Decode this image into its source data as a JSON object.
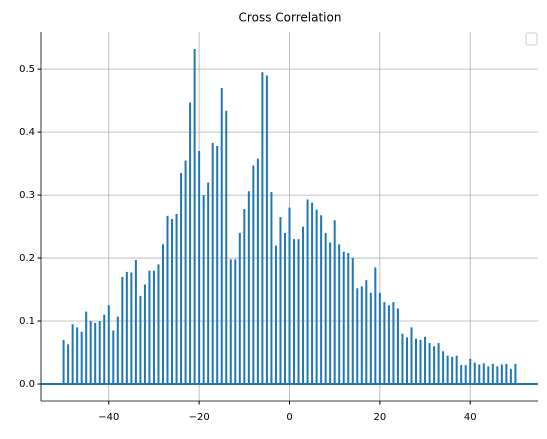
{
  "chart_data": {
    "type": "xcorr",
    "title": "Cross Correlation",
    "color": "#1f77b4",
    "grid": true,
    "x": [
      -50,
      -49,
      -48,
      -47,
      -46,
      -45,
      -44,
      -43,
      -42,
      -41,
      -40,
      -39,
      -38,
      -37,
      -36,
      -35,
      -34,
      -33,
      -32,
      -31,
      -30,
      -29,
      -28,
      -27,
      -26,
      -25,
      -24,
      -23,
      -22,
      -21,
      -20,
      -19,
      -18,
      -17,
      -16,
      -15,
      -14,
      -13,
      -12,
      -11,
      -10,
      -9,
      -8,
      -7,
      -6,
      -5,
      -4,
      -3,
      -2,
      -1,
      0,
      1,
      2,
      3,
      4,
      5,
      6,
      7,
      8,
      9,
      10,
      11,
      12,
      13,
      14,
      15,
      16,
      17,
      18,
      19,
      20,
      21,
      22,
      23,
      24,
      25,
      26,
      27,
      28,
      29,
      30,
      31,
      32,
      33,
      34,
      35,
      36,
      37,
      38,
      39,
      40,
      41,
      42,
      43,
      44,
      45,
      46,
      47,
      48,
      49,
      50
    ],
    "values": [
      0.07,
      0.063,
      0.095,
      0.09,
      0.083,
      0.115,
      0.1,
      0.097,
      0.1,
      0.11,
      0.125,
      0.085,
      0.107,
      0.17,
      0.178,
      0.177,
      0.197,
      0.14,
      0.158,
      0.18,
      0.18,
      0.19,
      0.222,
      0.267,
      0.262,
      0.27,
      0.335,
      0.355,
      0.447,
      0.532,
      0.37,
      0.3,
      0.32,
      0.383,
      0.378,
      0.47,
      0.434,
      0.198,
      0.198,
      0.24,
      0.278,
      0.306,
      0.347,
      0.358,
      0.495,
      0.49,
      0.305,
      0.22,
      0.265,
      0.24,
      0.28,
      0.23,
      0.23,
      0.25,
      0.293,
      0.288,
      0.277,
      0.268,
      0.24,
      0.225,
      0.26,
      0.222,
      0.21,
      0.208,
      0.2,
      0.152,
      0.155,
      0.165,
      0.145,
      0.185,
      0.145,
      0.13,
      0.125,
      0.13,
      0.12,
      0.08,
      0.074,
      0.09,
      0.072,
      0.07,
      0.075,
      0.065,
      0.06,
      0.065,
      0.052,
      0.045,
      0.043,
      0.045,
      0.03,
      0.03,
      0.04,
      0.034,
      0.031,
      0.033,
      0.028,
      0.032,
      0.028,
      0.031,
      0.032,
      0.024,
      0.032
    ],
    "xlim": [
      -55,
      55
    ],
    "ylim": [
      -0.027,
      0.559
    ],
    "xticks": [
      {
        "value": -40,
        "label": "−40"
      },
      {
        "value": -20,
        "label": "−20"
      },
      0,
      20,
      40
    ],
    "yticks": [
      {
        "value": 0,
        "label": "0.0"
      },
      0.1,
      0.2,
      0.3,
      0.4,
      0.5
    ]
  }
}
